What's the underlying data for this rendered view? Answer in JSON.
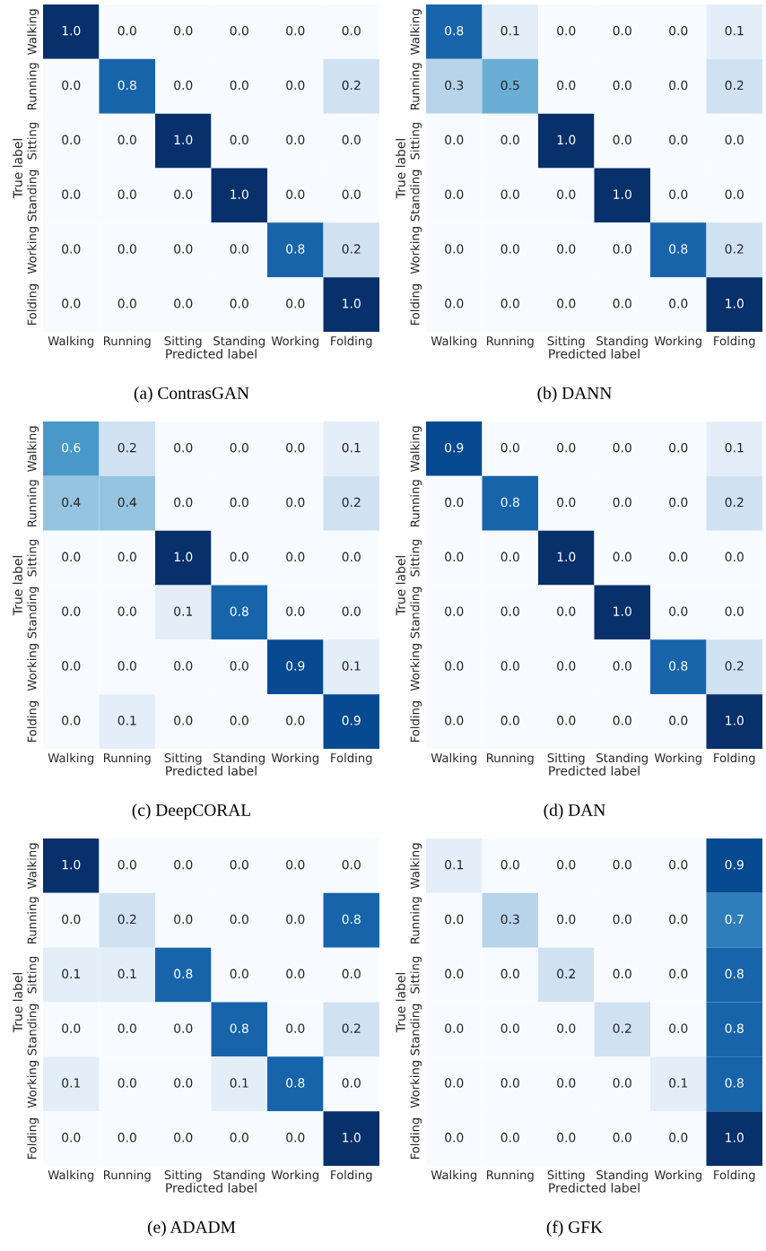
{
  "chart_data": [
    {
      "type": "heatmap",
      "categories": [
        "Walking",
        "Running",
        "Sitting",
        "Standing",
        "Working",
        "Folding"
      ],
      "y_categories": [
        "Walking",
        "Running",
        "Sitting",
        "Standing",
        "Working",
        "Folding"
      ],
      "xlabel": "Predicted label",
      "ylabel": "True label",
      "annotations": [
        "(a) ContrasGAN"
      ],
      "cells": [
        [
          1.0,
          0.0,
          0.0,
          0.0,
          0.0,
          0.0
        ],
        [
          0.0,
          0.8,
          0.0,
          0.0,
          0.0,
          0.2
        ],
        [
          0.0,
          0.0,
          1.0,
          0.0,
          0.0,
          0.0
        ],
        [
          0.0,
          0.0,
          0.0,
          1.0,
          0.0,
          0.0
        ],
        [
          0.0,
          0.0,
          0.0,
          0.0,
          0.8,
          0.2
        ],
        [
          0.0,
          0.0,
          0.0,
          0.0,
          0.0,
          1.0
        ]
      ],
      "cell_labels": [
        [
          "1.0",
          "0.0",
          "0.0",
          "0.0",
          "0.0",
          "0.0"
        ],
        [
          "0.0",
          "0.8",
          "0.0",
          "0.0",
          "0.0",
          "0.2"
        ],
        [
          "0.0",
          "0.0",
          "1.0",
          "0.0",
          "0.0",
          "0.0"
        ],
        [
          "0.0",
          "0.0",
          "0.0",
          "1.0",
          "0.0",
          "0.0"
        ],
        [
          "0.0",
          "0.0",
          "0.0",
          "0.0",
          "0.8",
          "0.2"
        ],
        [
          "0.0",
          "0.0",
          "0.0",
          "0.0",
          "0.0",
          "1.0"
        ]
      ]
    },
    {
      "type": "heatmap",
      "categories": [
        "Walking",
        "Running",
        "Sitting",
        "Standing",
        "Working",
        "Folding"
      ],
      "y_categories": [
        "Walking",
        "Running",
        "Sitting",
        "Standing",
        "Working",
        "Folding"
      ],
      "xlabel": "Predicted label",
      "ylabel": "True label",
      "annotations": [
        "(b) DANN"
      ],
      "cells": [
        [
          0.8,
          0.1,
          0.0,
          0.0,
          0.0,
          0.1
        ],
        [
          0.3,
          0.5,
          0.0,
          0.0,
          0.0,
          0.2
        ],
        [
          0.0,
          0.0,
          1.0,
          0.0,
          0.0,
          0.0
        ],
        [
          0.0,
          0.0,
          0.0,
          1.0,
          0.0,
          0.0
        ],
        [
          0.0,
          0.0,
          0.0,
          0.0,
          0.8,
          0.2
        ],
        [
          0.0,
          0.0,
          0.0,
          0.0,
          0.0,
          1.0
        ]
      ],
      "cell_labels": [
        [
          "0.8",
          "0.1",
          "0.0",
          "0.0",
          "0.0",
          "0.1"
        ],
        [
          "0.3",
          "0.5",
          "0.0",
          "0.0",
          "0.0",
          "0.2"
        ],
        [
          "0.0",
          "0.0",
          "1.0",
          "0.0",
          "0.0",
          "0.0"
        ],
        [
          "0.0",
          "0.0",
          "0.0",
          "1.0",
          "0.0",
          "0.0"
        ],
        [
          "0.0",
          "0.0",
          "0.0",
          "0.0",
          "0.8",
          "0.2"
        ],
        [
          "0.0",
          "0.0",
          "0.0",
          "0.0",
          "0.0",
          "1.0"
        ]
      ]
    },
    {
      "type": "heatmap",
      "categories": [
        "Walking",
        "Running",
        "Sitting",
        "Standing",
        "Working",
        "Folding"
      ],
      "y_categories": [
        "Walking",
        "Running",
        "Sitting",
        "Standing",
        "Working",
        "Folding"
      ],
      "xlabel": "Predicted label",
      "ylabel": "True label",
      "annotations": [
        "(c) DeepCORAL"
      ],
      "cells": [
        [
          0.6,
          0.2,
          0.0,
          0.0,
          0.0,
          0.1
        ],
        [
          0.4,
          0.4,
          0.0,
          0.0,
          0.0,
          0.2
        ],
        [
          0.0,
          0.0,
          1.0,
          0.0,
          0.0,
          0.0
        ],
        [
          0.0,
          0.0,
          0.1,
          0.8,
          0.0,
          0.0
        ],
        [
          0.0,
          0.0,
          0.0,
          0.0,
          0.9,
          0.1
        ],
        [
          0.0,
          0.1,
          0.0,
          0.0,
          0.0,
          0.9
        ]
      ],
      "cell_labels": [
        [
          "0.6",
          "0.2",
          "0.0",
          "0.0",
          "0.0",
          "0.1"
        ],
        [
          "0.4",
          "0.4",
          "0.0",
          "0.0",
          "0.0",
          "0.2"
        ],
        [
          "0.0",
          "0.0",
          "1.0",
          "0.0",
          "0.0",
          "0.0"
        ],
        [
          "0.0",
          "0.0",
          "0.1",
          "0.8",
          "0.0",
          "0.0"
        ],
        [
          "0.0",
          "0.0",
          "0.0",
          "0.0",
          "0.9",
          "0.1"
        ],
        [
          "0.0",
          "0.1",
          "0.0",
          "0.0",
          "0.0",
          "0.9"
        ]
      ]
    },
    {
      "type": "heatmap",
      "categories": [
        "Walking",
        "Running",
        "Sitting",
        "Standing",
        "Working",
        "Folding"
      ],
      "y_categories": [
        "Walking",
        "Running",
        "Sitting",
        "Standing",
        "Working",
        "Folding"
      ],
      "xlabel": "Predicted label",
      "ylabel": "True label",
      "annotations": [
        "(d) DAN"
      ],
      "cells": [
        [
          0.9,
          0.0,
          0.0,
          0.0,
          0.0,
          0.1
        ],
        [
          0.0,
          0.8,
          0.0,
          0.0,
          0.0,
          0.2
        ],
        [
          0.0,
          0.0,
          1.0,
          0.0,
          0.0,
          0.0
        ],
        [
          0.0,
          0.0,
          0.0,
          1.0,
          0.0,
          0.0
        ],
        [
          0.0,
          0.0,
          0.0,
          0.0,
          0.8,
          0.2
        ],
        [
          0.0,
          0.0,
          0.0,
          0.0,
          0.0,
          1.0
        ]
      ],
      "cell_labels": [
        [
          "0.9",
          "0.0",
          "0.0",
          "0.0",
          "0.0",
          "0.1"
        ],
        [
          "0.0",
          "0.8",
          "0.0",
          "0.0",
          "0.0",
          "0.2"
        ],
        [
          "0.0",
          "0.0",
          "1.0",
          "0.0",
          "0.0",
          "0.0"
        ],
        [
          "0.0",
          "0.0",
          "0.0",
          "1.0",
          "0.0",
          "0.0"
        ],
        [
          "0.0",
          "0.0",
          "0.0",
          "0.0",
          "0.8",
          "0.2"
        ],
        [
          "0.0",
          "0.0",
          "0.0",
          "0.0",
          "0.0",
          "1.0"
        ]
      ]
    },
    {
      "type": "heatmap",
      "categories": [
        "Walking",
        "Running",
        "Sitting",
        "Standing",
        "Working",
        "Folding"
      ],
      "y_categories": [
        "Walking",
        "Running",
        "Sitting",
        "Standing",
        "Working",
        "Folding"
      ],
      "xlabel": "Predicted label",
      "ylabel": "True label",
      "annotations": [
        "(e) ADADM"
      ],
      "cells": [
        [
          1.0,
          0.0,
          0.0,
          0.0,
          0.0,
          0.0
        ],
        [
          0.0,
          0.2,
          0.0,
          0.0,
          0.0,
          0.8
        ],
        [
          0.1,
          0.1,
          0.8,
          0.0,
          0.0,
          0.0
        ],
        [
          0.0,
          0.0,
          0.0,
          0.8,
          0.0,
          0.2
        ],
        [
          0.1,
          0.0,
          0.0,
          0.1,
          0.8,
          0.0
        ],
        [
          0.0,
          0.0,
          0.0,
          0.0,
          0.0,
          1.0
        ]
      ],
      "cell_labels": [
        [
          "1.0",
          "0.0",
          "0.0",
          "0.0",
          "0.0",
          "0.0"
        ],
        [
          "0.0",
          "0.2",
          "0.0",
          "0.0",
          "0.0",
          "0.8"
        ],
        [
          "0.1",
          "0.1",
          "0.8",
          "0.0",
          "0.0",
          "0.0"
        ],
        [
          "0.0",
          "0.0",
          "0.0",
          "0.8",
          "0.0",
          "0.2"
        ],
        [
          "0.1",
          "0.0",
          "0.0",
          "0.1",
          "0.8",
          "0.0"
        ],
        [
          "0.0",
          "0.0",
          "0.0",
          "0.0",
          "0.0",
          "1.0"
        ]
      ]
    },
    {
      "type": "heatmap",
      "categories": [
        "Walking",
        "Running",
        "Sitting",
        "Standing",
        "Working",
        "Folding"
      ],
      "y_categories": [
        "Walking",
        "Running",
        "Sitting",
        "Standing",
        "Working",
        "Folding"
      ],
      "xlabel": "Predicted label",
      "ylabel": "True label",
      "annotations": [
        "(f) GFK"
      ],
      "cells": [
        [
          0.1,
          0.0,
          0.0,
          0.0,
          0.0,
          0.9
        ],
        [
          0.0,
          0.3,
          0.0,
          0.0,
          0.0,
          0.7
        ],
        [
          0.0,
          0.0,
          0.2,
          0.0,
          0.0,
          0.8
        ],
        [
          0.0,
          0.0,
          0.0,
          0.2,
          0.0,
          0.8
        ],
        [
          0.0,
          0.0,
          0.0,
          0.0,
          0.1,
          0.8
        ],
        [
          0.0,
          0.0,
          0.0,
          0.0,
          0.0,
          1.0
        ]
      ],
      "cell_labels": [
        [
          "0.1",
          "0.0",
          "0.0",
          "0.0",
          "0.0",
          "0.9"
        ],
        [
          "0.0",
          "0.3",
          "0.0",
          "0.0",
          "0.0",
          "0.7"
        ],
        [
          "0.0",
          "0.0",
          "0.2",
          "0.0",
          "0.0",
          "0.8"
        ],
        [
          "0.0",
          "0.0",
          "0.0",
          "0.2",
          "0.0",
          "0.8"
        ],
        [
          "0.0",
          "0.0",
          "0.0",
          "0.0",
          "0.1",
          "0.8"
        ],
        [
          "0.0",
          "0.0",
          "0.0",
          "0.0",
          "0.0",
          "1.0"
        ]
      ]
    }
  ]
}
